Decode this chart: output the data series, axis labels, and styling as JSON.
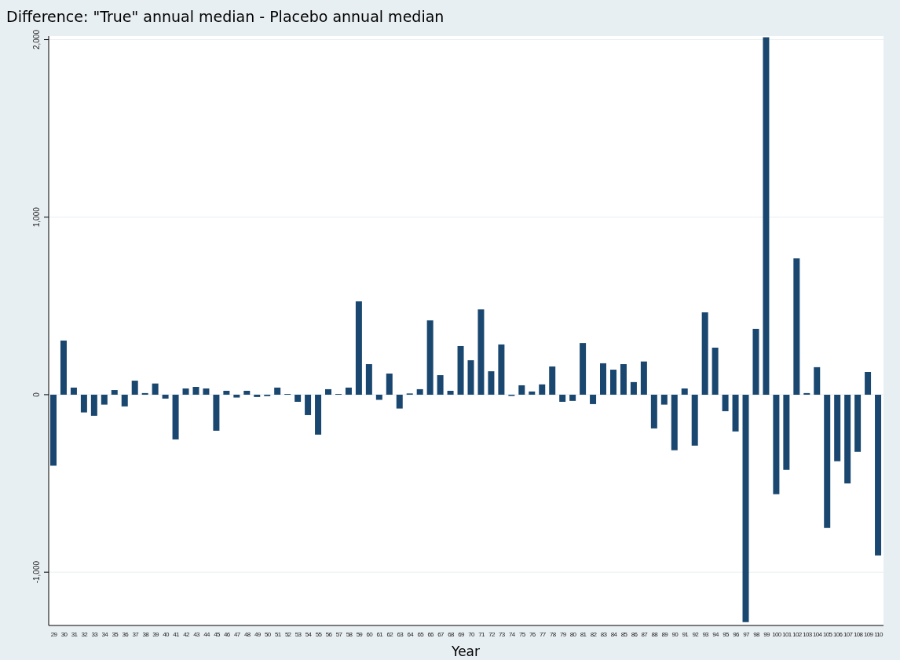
{
  "chart_data": {
    "type": "bar",
    "title": "Difference: \"True\" annual median - Placebo annual median",
    "xlabel": "Year",
    "categories": [
      "29",
      "30",
      "31",
      "32",
      "33",
      "34",
      "35",
      "36",
      "37",
      "38",
      "39",
      "40",
      "41",
      "42",
      "43",
      "44",
      "45",
      "46",
      "47",
      "48",
      "49",
      "50",
      "51",
      "52",
      "53",
      "54",
      "55",
      "56",
      "57",
      "58",
      "59",
      "60",
      "61",
      "62",
      "63",
      "64",
      "65",
      "66",
      "67",
      "68",
      "69",
      "70",
      "71",
      "72",
      "73",
      "74",
      "75",
      "76",
      "77",
      "78",
      "79",
      "80",
      "81",
      "82",
      "83",
      "84",
      "85",
      "86",
      "87",
      "88",
      "89",
      "90",
      "91",
      "92",
      "93",
      "94",
      "95",
      "96",
      "97",
      "98",
      "99",
      "100",
      "101",
      "102",
      "103",
      "104",
      "105",
      "106",
      "107",
      "108",
      "109",
      "110"
    ],
    "values": [
      -400,
      305,
      40,
      -100,
      -119,
      -56,
      26,
      -66,
      79,
      9,
      63,
      -22,
      -252,
      35,
      44,
      35,
      -203,
      22,
      -16,
      22,
      -13,
      -8,
      40,
      4,
      -40,
      -115,
      -225,
      31,
      4,
      40,
      526,
      172,
      -29,
      119,
      -78,
      7,
      31,
      419,
      110,
      22,
      274,
      194,
      481,
      132,
      283,
      -7,
      53,
      18,
      58,
      159,
      -40,
      -35,
      291,
      -53,
      177,
      141,
      172,
      71,
      187,
      -190,
      -56,
      -313,
      35,
      -287,
      464,
      265,
      -93,
      -207,
      -1281,
      371,
      2013,
      -561,
      -424,
      768,
      9,
      155,
      -751,
      -375,
      -500,
      -322,
      128,
      -905
    ],
    "color": "#1a476f",
    "ylim": [
      -1300,
      2020
    ],
    "yticks": [
      {
        "value": -1000,
        "label": "-1,000"
      },
      0,
      {
        "value": 1000,
        "label": "1,000"
      },
      {
        "value": 2000,
        "label": "2,000"
      }
    ],
    "grid": "y"
  }
}
